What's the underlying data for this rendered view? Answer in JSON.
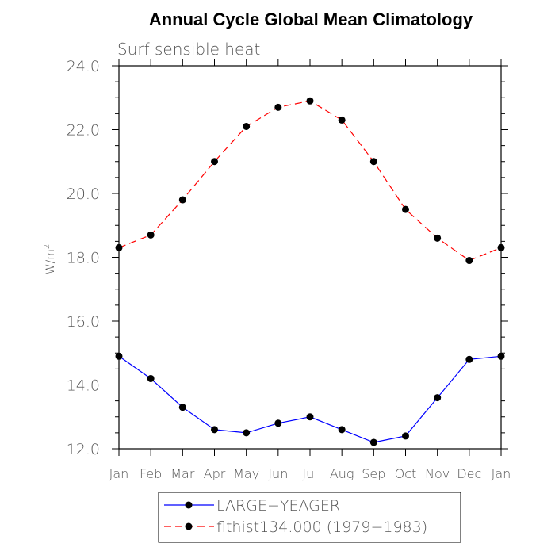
{
  "title": "Annual Cycle Global Mean Climatology",
  "subtitle": "Surf sensible heat",
  "ylabel": "W/m",
  "ylabel_sup": "2",
  "chart_data": {
    "type": "line",
    "title": "Annual Cycle Global Mean Climatology",
    "subtitle": "Surf sensible heat",
    "ylabel": "W/m2",
    "categories": [
      "Jan",
      "Feb",
      "Mar",
      "Apr",
      "May",
      "Jun",
      "Jul",
      "Aug",
      "Sep",
      "Oct",
      "Nov",
      "Dec",
      "Jan"
    ],
    "ylim": [
      12.0,
      24.0
    ],
    "y_ticks": [
      "12.0",
      "14.0",
      "16.0",
      "18.0",
      "20.0",
      "22.0",
      "24.0"
    ],
    "series": [
      {
        "name": "LARGE−YEAGER",
        "color": "#0000ff",
        "dash": "solid",
        "values": [
          14.9,
          14.2,
          13.3,
          12.6,
          12.5,
          12.8,
          13.0,
          12.6,
          12.2,
          12.4,
          13.6,
          14.8,
          14.9
        ]
      },
      {
        "name": "flthist134.000 (1979−1983)",
        "color": "#ff0000",
        "dash": "dashed",
        "values": [
          18.3,
          18.7,
          19.8,
          21.0,
          22.1,
          22.7,
          22.9,
          22.3,
          21.0,
          19.5,
          18.6,
          17.9,
          18.3
        ]
      }
    ],
    "legend_position": "bottom"
  }
}
